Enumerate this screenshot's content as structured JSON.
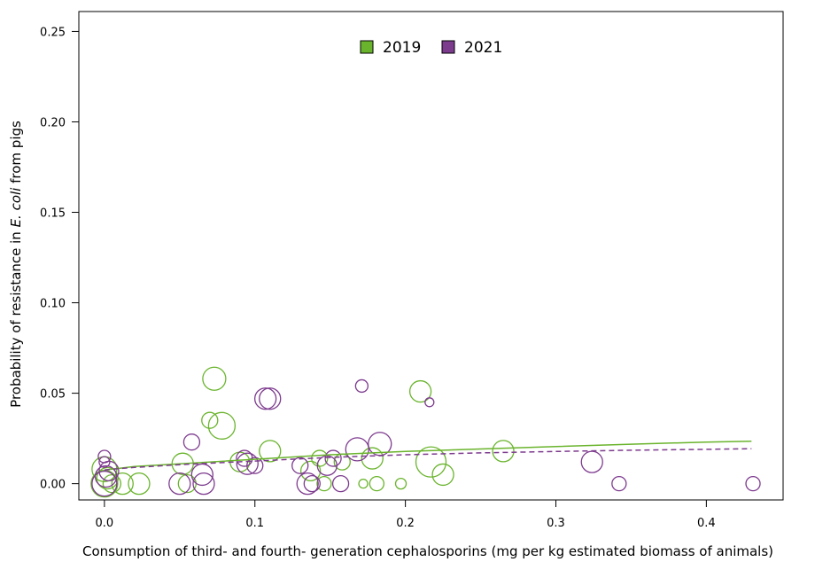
{
  "chart_data": {
    "type": "scatter",
    "xlabel": "Consumption of third- and fourth- generation cephalosporins  (mg per kg estimated biomass of animals)",
    "ylabel_parts": [
      "Probability of resistance in  ",
      "E. coli",
      " from pigs"
    ],
    "xlim": [
      -0.017,
      0.451
    ],
    "ylim": [
      -0.009,
      0.261
    ],
    "x_ticks": [
      0.0,
      0.1,
      0.2,
      0.3,
      0.4
    ],
    "x_tick_labels": [
      "0.0",
      "0.1",
      "0.2",
      "0.3",
      "0.4"
    ],
    "y_ticks": [
      0.0,
      0.05,
      0.1,
      0.15,
      0.2,
      0.25
    ],
    "y_tick_labels": [
      "0.00",
      "0.05",
      "0.10",
      "0.15",
      "0.20",
      "0.25"
    ],
    "legend_position": "top-center",
    "grid": false,
    "series": [
      {
        "name": "2019",
        "color": "#6ab42d",
        "fit_line_style": "solid",
        "fit_line": {
          "x": [
            0.0,
            0.005,
            0.02,
            0.05,
            0.1,
            0.15,
            0.2,
            0.25,
            0.3,
            0.35,
            0.4,
            0.43
          ],
          "y": [
            0.0075,
            0.008,
            0.0095,
            0.011,
            0.0135,
            0.016,
            0.0178,
            0.0192,
            0.0205,
            0.0218,
            0.023,
            0.0235
          ]
        },
        "points": [
          {
            "x": 0.0,
            "y": 0.0,
            "r": 15
          },
          {
            "x": 0.0,
            "y": 0.008,
            "r": 14
          },
          {
            "x": 0.002,
            "y": 0.003,
            "r": 12
          },
          {
            "x": 0.005,
            "y": 0.0,
            "r": 10
          },
          {
            "x": 0.012,
            "y": 0.0,
            "r": 12
          },
          {
            "x": 0.023,
            "y": 0.0,
            "r": 12
          },
          {
            "x": 0.052,
            "y": 0.011,
            "r": 12
          },
          {
            "x": 0.055,
            "y": 0.0,
            "r": 10
          },
          {
            "x": 0.07,
            "y": 0.035,
            "r": 9
          },
          {
            "x": 0.073,
            "y": 0.058,
            "r": 13
          },
          {
            "x": 0.078,
            "y": 0.032,
            "r": 15
          },
          {
            "x": 0.09,
            "y": 0.012,
            "r": 11
          },
          {
            "x": 0.11,
            "y": 0.018,
            "r": 12
          },
          {
            "x": 0.137,
            "y": 0.007,
            "r": 11
          },
          {
            "x": 0.143,
            "y": 0.014,
            "r": 9
          },
          {
            "x": 0.146,
            "y": 0.0,
            "r": 8
          },
          {
            "x": 0.158,
            "y": 0.012,
            "r": 9
          },
          {
            "x": 0.172,
            "y": 0.0,
            "r": 5
          },
          {
            "x": 0.178,
            "y": 0.014,
            "r": 12
          },
          {
            "x": 0.181,
            "y": 0.0,
            "r": 8
          },
          {
            "x": 0.197,
            "y": 0.0,
            "r": 6
          },
          {
            "x": 0.21,
            "y": 0.051,
            "r": 12
          },
          {
            "x": 0.217,
            "y": 0.012,
            "r": 17
          },
          {
            "x": 0.225,
            "y": 0.005,
            "r": 12
          },
          {
            "x": 0.265,
            "y": 0.018,
            "r": 12
          }
        ]
      },
      {
        "name": "2021",
        "color": "#7d3b8e",
        "fit_line_style": "dashed",
        "fit_line": {
          "x": [
            0.0,
            0.005,
            0.02,
            0.05,
            0.1,
            0.15,
            0.2,
            0.25,
            0.3,
            0.35,
            0.4,
            0.43
          ],
          "y": [
            0.0075,
            0.008,
            0.009,
            0.0105,
            0.0125,
            0.0145,
            0.016,
            0.017,
            0.0178,
            0.0185,
            0.019,
            0.0193
          ]
        },
        "points": [
          {
            "x": 0.0,
            "y": 0.0,
            "r": 14
          },
          {
            "x": 0.0,
            "y": 0.015,
            "r": 7
          },
          {
            "x": 0.0,
            "y": 0.012,
            "r": 6
          },
          {
            "x": 0.001,
            "y": 0.004,
            "r": 12
          },
          {
            "x": 0.003,
            "y": 0.007,
            "r": 11
          },
          {
            "x": 0.058,
            "y": 0.023,
            "r": 9
          },
          {
            "x": 0.05,
            "y": 0.0,
            "r": 12
          },
          {
            "x": 0.065,
            "y": 0.005,
            "r": 12
          },
          {
            "x": 0.066,
            "y": 0.0,
            "r": 12
          },
          {
            "x": 0.093,
            "y": 0.014,
            "r": 9
          },
          {
            "x": 0.095,
            "y": 0.011,
            "r": 12
          },
          {
            "x": 0.1,
            "y": 0.01,
            "r": 9
          },
          {
            "x": 0.107,
            "y": 0.047,
            "r": 12
          },
          {
            "x": 0.11,
            "y": 0.047,
            "r": 12
          },
          {
            "x": 0.13,
            "y": 0.01,
            "r": 9
          },
          {
            "x": 0.135,
            "y": 0.0,
            "r": 12
          },
          {
            "x": 0.138,
            "y": 0.0,
            "r": 9
          },
          {
            "x": 0.148,
            "y": 0.01,
            "r": 11
          },
          {
            "x": 0.152,
            "y": 0.014,
            "r": 9
          },
          {
            "x": 0.157,
            "y": 0.0,
            "r": 9
          },
          {
            "x": 0.168,
            "y": 0.019,
            "r": 13
          },
          {
            "x": 0.171,
            "y": 0.054,
            "r": 7
          },
          {
            "x": 0.183,
            "y": 0.022,
            "r": 13
          },
          {
            "x": 0.216,
            "y": 0.045,
            "r": 5
          },
          {
            "x": 0.324,
            "y": 0.012,
            "r": 12
          },
          {
            "x": 0.342,
            "y": 0.0,
            "r": 8
          },
          {
            "x": 0.431,
            "y": 0.0,
            "r": 8
          }
        ]
      }
    ]
  }
}
